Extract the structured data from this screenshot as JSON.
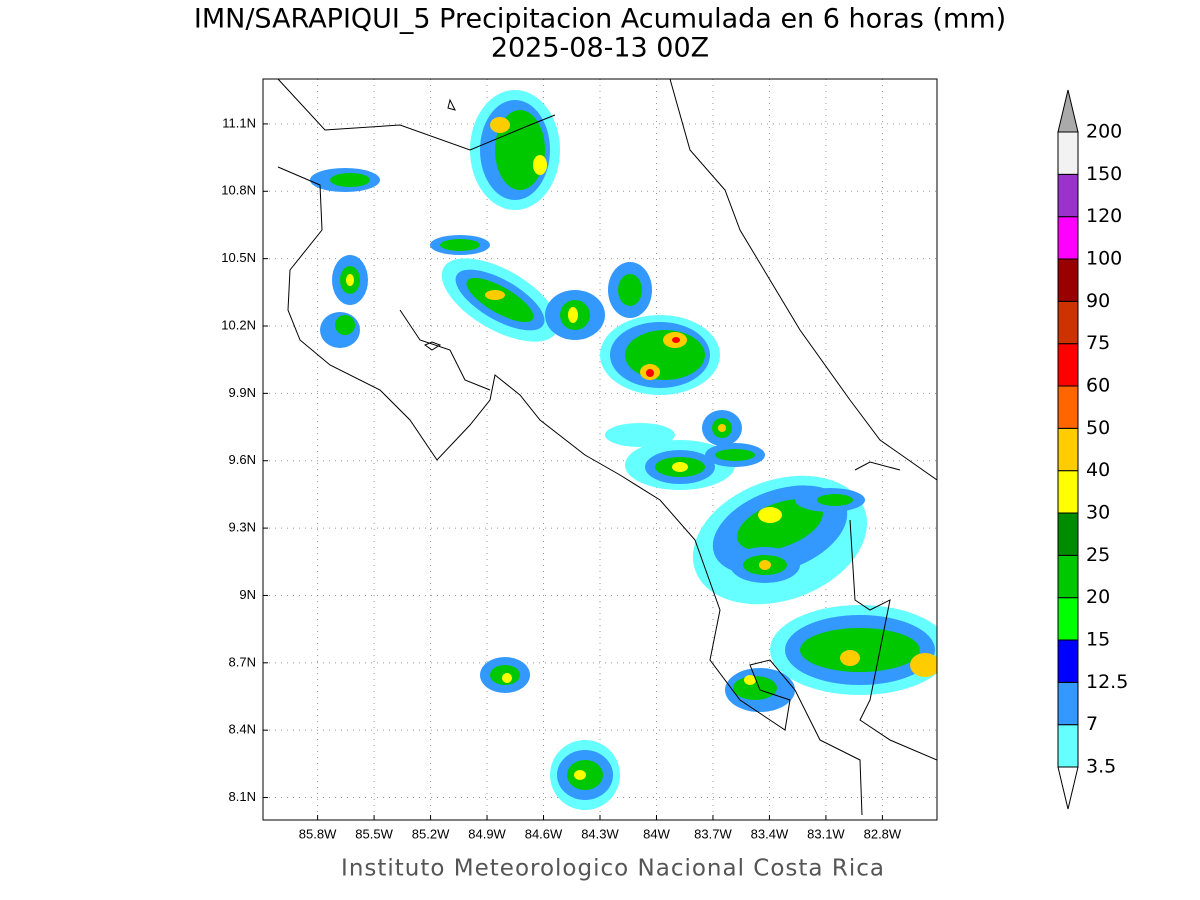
{
  "map": {
    "title": "IMN/SARAPIQUI_5 Precipitacion Acumulada en 6 horas (mm)",
    "subtitle": "2025-08-13 00Z",
    "footer": "Instituto Meteorologico Nacional Costa Rica",
    "xlim": [
      -86.09,
      -82.51
    ],
    "ylim": [
      8.0,
      11.3
    ],
    "xticks": [
      {
        "value": -85.8,
        "label": "85.8W"
      },
      {
        "value": -85.5,
        "label": "85.5W"
      },
      {
        "value": -85.2,
        "label": "85.2W"
      },
      {
        "value": -84.9,
        "label": "84.9W"
      },
      {
        "value": -84.6,
        "label": "84.6W"
      },
      {
        "value": -84.3,
        "label": "84.3W"
      },
      {
        "value": -84.0,
        "label": "84W"
      },
      {
        "value": -83.7,
        "label": "83.7W"
      },
      {
        "value": -83.4,
        "label": "83.4W"
      },
      {
        "value": -83.1,
        "label": "83.1W"
      },
      {
        "value": -82.8,
        "label": "82.8W"
      }
    ],
    "yticks": [
      {
        "value": 8.1,
        "label": "8.1N"
      },
      {
        "value": 8.4,
        "label": "8.4N"
      },
      {
        "value": 8.7,
        "label": "8.7N"
      },
      {
        "value": 9.0,
        "label": "9N"
      },
      {
        "value": 9.3,
        "label": "9.3N"
      },
      {
        "value": 9.6,
        "label": "9.6N"
      },
      {
        "value": 9.9,
        "label": "9.9N"
      },
      {
        "value": 10.2,
        "label": "10.2N"
      },
      {
        "value": 10.5,
        "label": "10.5N"
      },
      {
        "value": 10.8,
        "label": "10.8N"
      },
      {
        "value": 11.1,
        "label": "11.1N"
      }
    ],
    "grid": true,
    "colorbar": {
      "levels": [
        3.5,
        7,
        12.5,
        15,
        20,
        25,
        30,
        40,
        50,
        60,
        75,
        90,
        100,
        120,
        150,
        200
      ],
      "colors": [
        "#ffffff",
        "#66ffff",
        "#3399ff",
        "#0000ff",
        "#00ff00",
        "#00c800",
        "#008c00",
        "#ffff00",
        "#ffcc00",
        "#ff6600",
        "#ff0000",
        "#cc3300",
        "#990000",
        "#ff00ff",
        "#9933cc",
        "#f2f2f2",
        "#aaaaaa"
      ]
    }
  }
}
